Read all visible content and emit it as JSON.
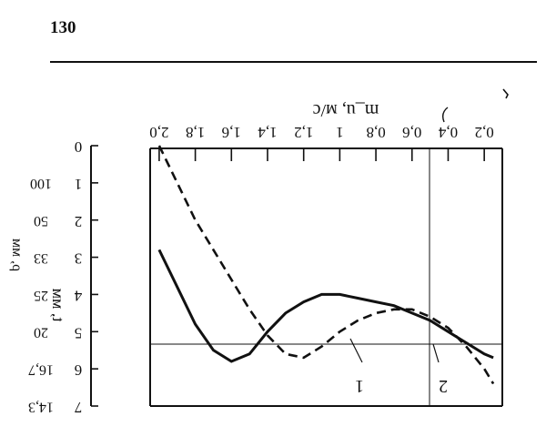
{
  "page": {
    "number": "130"
  },
  "figure": {
    "top_axis_unit": "m_u, м/с",
    "left_axis_unit": "t, мм",
    "far_left_unit": "ρ, мм",
    "curve_labels": [
      "1",
      "2"
    ]
  },
  "chart_data": {
    "type": "line",
    "top_axis": {
      "label": "m_u, м/с",
      "tick_labels": [
        "2,0",
        "1,8",
        "1,6",
        "1,4",
        "1,2",
        "1",
        "0,8",
        "0,6",
        "0,4",
        "0,2"
      ],
      "mirrored": true
    },
    "left_axis": {
      "label": "t, мм",
      "tick_labels": [
        "0",
        "1",
        "2",
        "3",
        "4",
        "5",
        "6",
        "7"
      ],
      "range": [
        0,
        7
      ]
    },
    "far_left_axis": {
      "label": "ρ, мм",
      "tick_labels": [
        "100",
        "50",
        "33",
        "25",
        "20",
        "16,7",
        "14,3"
      ]
    },
    "series": [
      {
        "name": "1",
        "style": "dashed",
        "x": [
          2.0,
          1.9,
          1.8,
          1.7,
          1.6,
          1.5,
          1.4,
          1.3,
          1.2,
          1.1,
          1.0,
          0.9,
          0.8,
          0.7,
          0.6,
          0.5,
          0.4,
          0.3,
          0.2,
          0.15
        ],
        "y": [
          0.0,
          1.0,
          2.0,
          2.8,
          3.6,
          4.4,
          5.1,
          5.6,
          5.7,
          5.4,
          5.0,
          4.7,
          4.5,
          4.4,
          4.4,
          4.6,
          4.9,
          5.4,
          6.0,
          6.4
        ]
      },
      {
        "name": "2",
        "style": "solid",
        "x": [
          2.0,
          1.9,
          1.8,
          1.7,
          1.6,
          1.5,
          1.4,
          1.3,
          1.2,
          1.1,
          1.0,
          0.9,
          0.8,
          0.7,
          0.6,
          0.5,
          0.4,
          0.3,
          0.2,
          0.15
        ],
        "y": [
          2.8,
          3.8,
          4.8,
          5.5,
          5.8,
          5.6,
          5.0,
          4.5,
          4.2,
          4.0,
          4.0,
          4.1,
          4.2,
          4.3,
          4.5,
          4.7,
          5.0,
          5.3,
          5.6,
          5.7
        ]
      }
    ]
  }
}
